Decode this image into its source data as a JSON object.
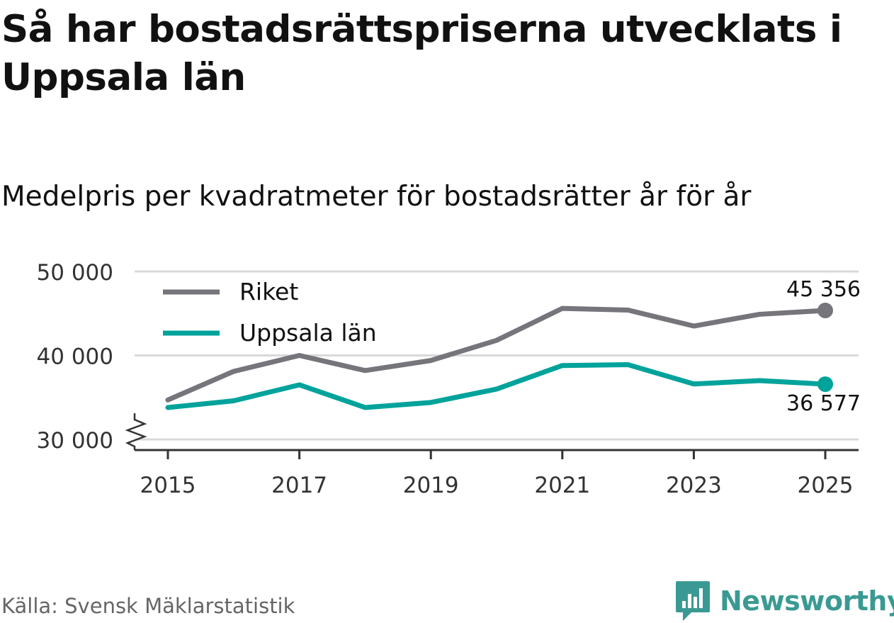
{
  "title": "Så har bostadsrättspriserna utvecklats i Uppsala län",
  "subtitle": "Medelpris per kvadratmeter för bostadsrätter år för år",
  "source": "Källa: Svensk Mäklarstatistik",
  "brand": "Newsworthy",
  "colors": {
    "riket": "#76757b",
    "uppsala": "#00a39b",
    "grid": "#d9d9d9",
    "axis": "#333333",
    "brand": "#3a9a93"
  },
  "chart_data": {
    "type": "line",
    "x": [
      2015,
      2016,
      2017,
      2018,
      2019,
      2020,
      2021,
      2022,
      2023,
      2024,
      2025
    ],
    "series": [
      {
        "name": "Riket",
        "values": [
          34700,
          38100,
          40000,
          38200,
          39400,
          41800,
          45600,
          45400,
          43500,
          44900,
          45356
        ]
      },
      {
        "name": "Uppsala län",
        "values": [
          33800,
          34600,
          36500,
          33800,
          34400,
          36000,
          38800,
          38900,
          36600,
          37000,
          36577
        ]
      }
    ],
    "end_labels": [
      "45 356",
      "36 577"
    ],
    "yticks": [
      30000,
      40000,
      50000
    ],
    "ytick_labels": [
      "30 000",
      "40 000",
      "50 000"
    ],
    "xticks": [
      2015,
      2017,
      2019,
      2021,
      2023,
      2025
    ],
    "xtick_labels": [
      "2015",
      "2017",
      "2019",
      "2021",
      "2023",
      "2025"
    ],
    "ylim": [
      30000,
      50000
    ],
    "legend": [
      "Riket",
      "Uppsala län"
    ],
    "legend_position": "top-left",
    "grid": true,
    "axis_break": true
  }
}
